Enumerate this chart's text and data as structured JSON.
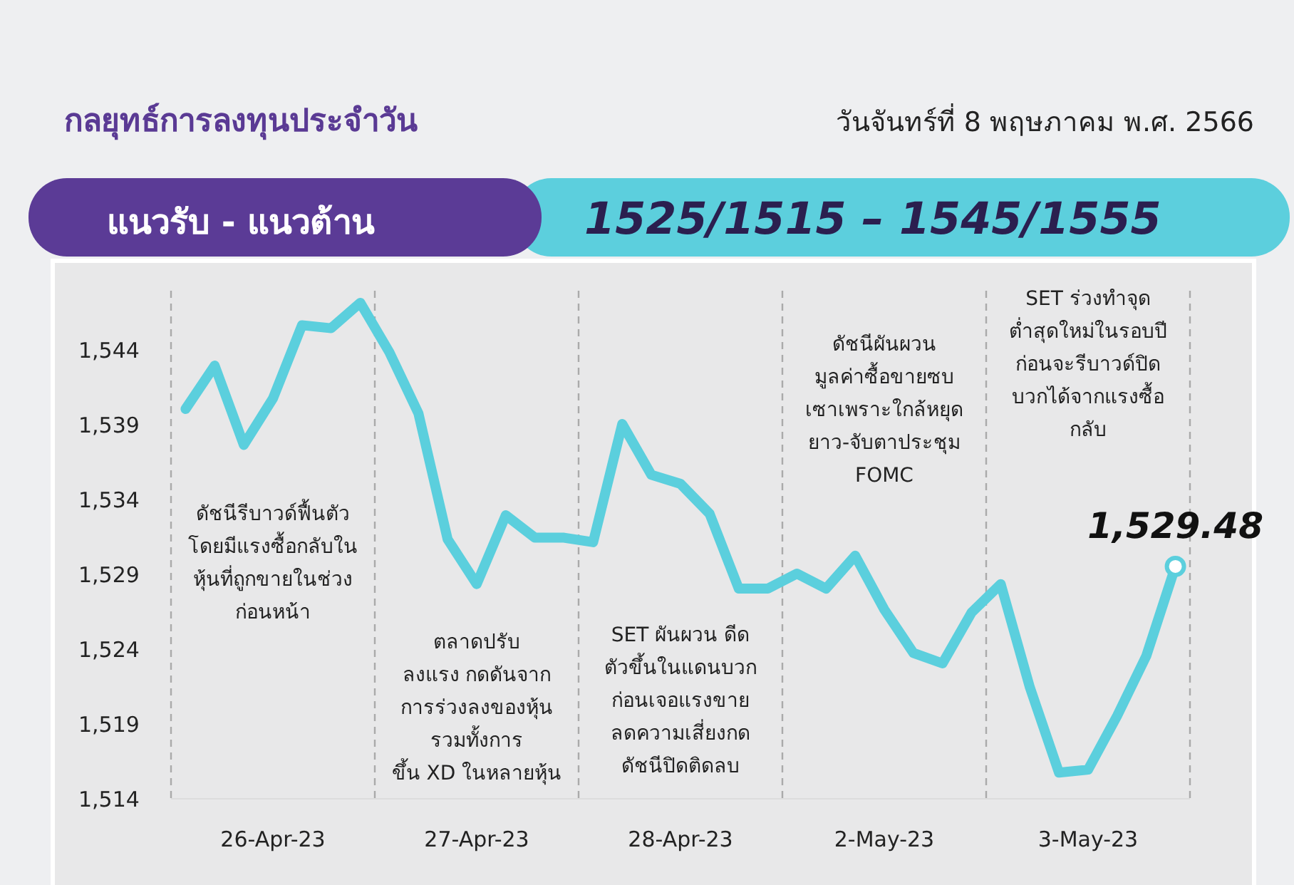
{
  "chart_data": {
    "type": "line",
    "title": "กลยุทธ์การลงทุนประจำวัน",
    "subtitle": "วันจันทร์ที่ 8 พฤษภาคม พ.ศ. 2566",
    "annotations": [
      "แนวรับ - แนวต้าน",
      "1525/1515 – 1545/1555",
      "ดัชนีรีบาวด์ฟื้นตัว\nโดยมีแรงซื้อกลับใน\nหุ้นที่ถูกขายในช่วง\nก่อนหน้า",
      "ตลาดปรับ\nลงแรง กดดันจาก\nการร่วงลงของหุ้น\nรวมทั้งการ\nขึ้น XD ในหลายหุ้น",
      "SET ผันผวน ดีด\nตัวขึ้นในแดนบวก\nก่อนเจอแรงขาย\nลดความเสี่ยงกด\nดัชนีปิดติดลบ",
      "ดัชนีผันผวน\nมูลค่าซื้อขายซบ\nเซาเพราะใกล้หยุด\nยาว-จับตาประชุม\nFOMC",
      "SET ร่วงทำจุด\nต่ำสุดใหม่ในรอบปี\nก่อนจะรีบาวด์ปิด\nบวกได้จากแรงซื้อ\nกลับ"
    ],
    "categories": [
      null,
      null,
      null,
      "26-Apr-23",
      null,
      null,
      null,
      null,
      null,
      null,
      "27-Apr-23",
      null,
      null,
      null,
      null,
      null,
      null,
      "28-Apr-23",
      null,
      null,
      null,
      null,
      null,
      null,
      "2-May-23",
      null,
      null,
      null,
      null,
      null,
      null,
      "3-May-23",
      null,
      null,
      null
    ],
    "ylim": [
      1514,
      1548
    ],
    "yticks": [
      {
        "value": 1514,
        "label": "1,514"
      },
      {
        "value": 1519,
        "label": "1,519"
      },
      {
        "value": 1524,
        "label": "1,524"
      },
      {
        "value": 1529,
        "label": "1,529"
      },
      {
        "value": 1534,
        "label": "1,534"
      },
      {
        "value": 1539,
        "label": "1,539"
      },
      {
        "value": 1544,
        "label": "1,544"
      }
    ],
    "series": [
      {
        "color": "#5bcfdd",
        "values": [
          1540.0,
          1542.9,
          1537.6,
          1540.7,
          1545.6,
          1545.4,
          1547.1,
          1543.8,
          1539.7,
          1531.3,
          1528.3,
          1532.9,
          1531.4,
          1531.4,
          1531.1,
          1539.0,
          1535.6,
          1535.0,
          1533.0,
          1528.0,
          1528.0,
          1529.0,
          1528.0,
          1530.2,
          1526.6,
          1523.7,
          1523.0,
          1526.4,
          1528.3,
          1521.4,
          1515.7,
          1515.9,
          1519.5,
          1523.5,
          1529.48
        ],
        "value_labels": [
          null,
          null,
          null,
          null,
          null,
          null,
          null,
          null,
          null,
          null,
          null,
          null,
          null,
          null,
          null,
          null,
          null,
          null,
          null,
          null,
          null,
          null,
          null,
          null,
          null,
          null,
          null,
          null,
          null,
          null,
          null,
          null,
          null,
          null,
          "1,529.48"
        ]
      }
    ]
  }
}
